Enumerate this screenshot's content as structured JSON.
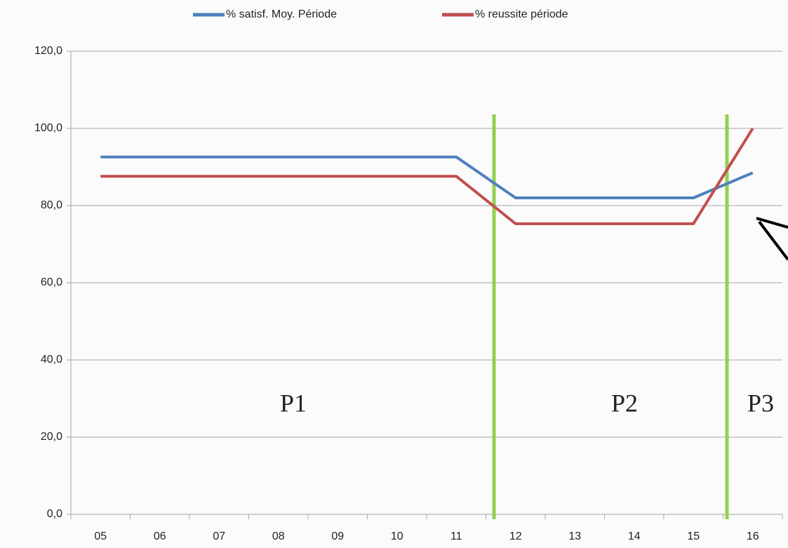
{
  "chart_data": {
    "type": "line",
    "categories": [
      "05",
      "06",
      "07",
      "08",
      "09",
      "10",
      "11",
      "12",
      "13",
      "14",
      "15",
      "16"
    ],
    "series": [
      {
        "name": "% satisf. Moy. Période",
        "color": "#4f81bd",
        "values": [
          92.6,
          92.6,
          92.6,
          92.6,
          92.6,
          92.6,
          92.6,
          82.0,
          82.0,
          82.0,
          82.0,
          88.5
        ]
      },
      {
        "name": "% reussite période",
        "color": "#c0504d",
        "values": [
          87.6,
          87.6,
          87.6,
          87.6,
          87.6,
          87.6,
          87.6,
          75.3,
          75.3,
          75.3,
          75.3,
          100
        ]
      }
    ],
    "ylim": [
      0,
      120
    ],
    "yticks": [
      {
        "value": 0,
        "label": "0,0"
      },
      {
        "value": 20,
        "label": "20,0"
      },
      {
        "value": 40,
        "label": "40,0"
      },
      {
        "value": 60,
        "label": "60,0"
      },
      {
        "value": 80,
        "label": "80,0"
      },
      {
        "value": 100,
        "label": "100,0"
      },
      {
        "value": 120,
        "label": "120,0"
      }
    ],
    "grid": true,
    "legend": "top",
    "annotations": [
      "P1",
      "P2",
      "P3"
    ]
  }
}
